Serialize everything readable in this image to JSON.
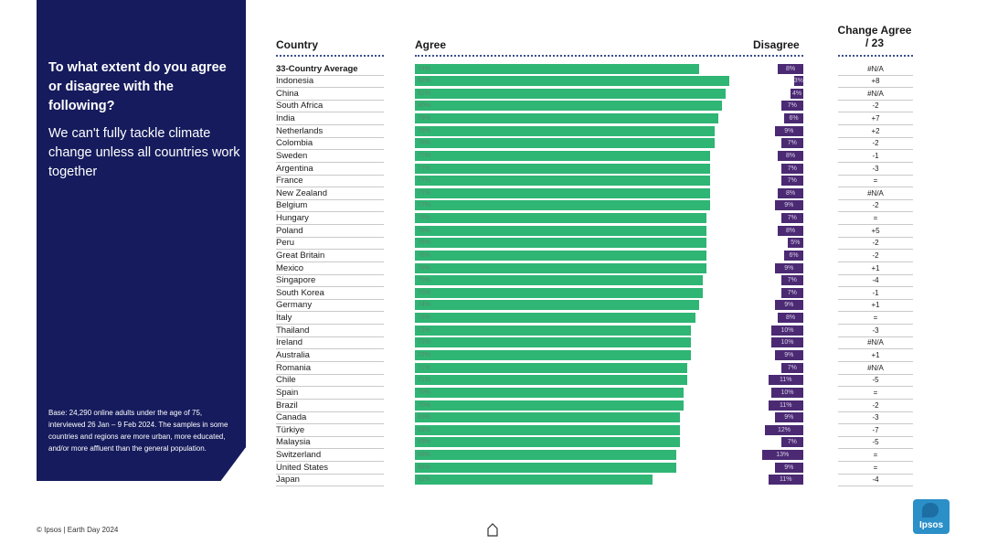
{
  "panel": {
    "question": "To what extent do you agree or disagree with the following?",
    "statement": "We can't fully tackle climate change unless all countries work together",
    "base": "Base: 24,290 online adults under the age of 75, interviewed 26 Jan – 9 Feb 2024. The samples in some countries and regions are more urban, more educated, and/or more affluent than the general population."
  },
  "headers": {
    "country": "Country",
    "agree": "Agree",
    "disagree": "Disagree",
    "change_line1": "Change Agree",
    "change_line2": "/ 23"
  },
  "colors": {
    "navy": "#151b5c",
    "agree": "#2fb574",
    "disagree": "#4b2a73"
  },
  "footer": {
    "text": "© Ipsos | Earth Day 2024",
    "logo": "Ipsos"
  },
  "chart_data": {
    "type": "bar",
    "title": "We can't fully tackle climate change unless all countries work together",
    "series": [
      {
        "name": "Agree",
        "values": [
          74,
          82,
          81,
          80,
          79,
          78,
          78,
          77,
          77,
          77,
          77,
          77,
          76,
          76,
          76,
          76,
          76,
          75,
          75,
          74,
          73,
          72,
          72,
          72,
          71,
          71,
          70,
          70,
          69,
          69,
          69,
          68,
          68,
          62
        ]
      },
      {
        "name": "Disagree",
        "values": [
          8,
          3,
          4,
          7,
          6,
          9,
          7,
          8,
          7,
          7,
          8,
          9,
          7,
          8,
          5,
          6,
          9,
          7,
          7,
          9,
          8,
          10,
          10,
          9,
          7,
          11,
          10,
          11,
          9,
          12,
          7,
          13,
          9,
          11
        ]
      }
    ],
    "categories": [
      "33-Country Average",
      "Indonesia",
      "China",
      "South Africa",
      "India",
      "Netherlands",
      "Colombia",
      "Sweden",
      "Argentina",
      "France",
      "New Zealand",
      "Belgium",
      "Hungary",
      "Poland",
      "Peru",
      "Great Britain",
      "Mexico",
      "Singapore",
      "South Korea",
      "Germany",
      "Italy",
      "Thailand",
      "Ireland",
      "Australia",
      "Romania",
      "Chile",
      "Spain",
      "Brazil",
      "Canada",
      "Türkiye",
      "Malaysia",
      "Switzerland",
      "United States",
      "Japan"
    ],
    "agree_labels": [
      "74%",
      "82%",
      "81%",
      "80%",
      "79%",
      "78%",
      "78%",
      "77%",
      "77%",
      "77%",
      "77%",
      "77%",
      "76%",
      "76%",
      "76%",
      "76%",
      "76%",
      "75%",
      "75%",
      "74%",
      "73%",
      "72%",
      "72%",
      "72%",
      "71%",
      "71%",
      "70%",
      "70%",
      "69%",
      "69%",
      "69%",
      "68%",
      "68%",
      "62%"
    ],
    "disagree_labels": [
      "8%",
      "3%",
      "4%",
      "7%",
      "6%",
      "9%",
      "7%",
      "8%",
      "7%",
      "7%",
      "8%",
      "9%",
      "7%",
      "8%",
      "5%",
      "6%",
      "9%",
      "7%",
      "7%",
      "9%",
      "8%",
      "10%",
      "10%",
      "9%",
      "7%",
      "11%",
      "10%",
      "11%",
      "9%",
      "12%",
      "7%",
      "13%",
      "9%",
      "11%"
    ],
    "change": [
      "#N/A",
      "+8",
      "#N/A",
      "-2",
      "+7",
      "+2",
      "-2",
      "-1",
      "-3",
      "=",
      "#N/A",
      "-2",
      "=",
      "+5",
      "-2",
      "-2",
      "+1",
      "-4",
      "-1",
      "+1",
      "=",
      "-3",
      "#N/A",
      "+1",
      "#N/A",
      "-5",
      "=",
      "-2",
      "-3",
      "-7",
      "-5",
      "=",
      "=",
      "-4"
    ],
    "xlim": [
      0,
      100
    ]
  }
}
